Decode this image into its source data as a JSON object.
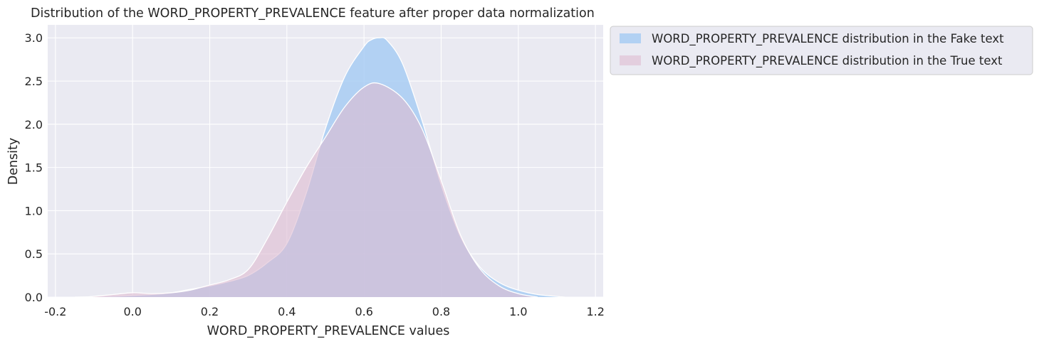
{
  "chart_data": {
    "type": "area",
    "title": "Distribution of the WORD_PROPERTY_PREVALENCE feature after proper data normalization",
    "xlabel": "WORD_PROPERTY_PREVALENCE values",
    "ylabel": "Density",
    "xlim": [
      -0.22,
      1.22
    ],
    "ylim": [
      0,
      3.15
    ],
    "xticks": [
      "-0.2",
      "0.0",
      "0.2",
      "0.4",
      "0.6",
      "0.8",
      "1.0",
      "1.2"
    ],
    "xtick_values": [
      -0.2,
      0.0,
      0.2,
      0.4,
      0.6,
      0.8,
      1.0,
      1.2
    ],
    "yticks": [
      "0.0",
      "0.5",
      "1.0",
      "1.5",
      "2.0",
      "2.5",
      "3.0"
    ],
    "ytick_values": [
      0.0,
      0.5,
      1.0,
      1.5,
      2.0,
      2.5,
      3.0
    ],
    "grid": true,
    "legend_position": "outside-top-right",
    "series": [
      {
        "name": "WORD_PROPERTY_PREVALENCE distribution in the Fake text",
        "color": "#a1c9f4",
        "x": [
          -0.15,
          -0.05,
          0.0,
          0.05,
          0.1,
          0.15,
          0.2,
          0.25,
          0.3,
          0.35,
          0.4,
          0.45,
          0.5,
          0.55,
          0.6,
          0.62,
          0.64,
          0.66,
          0.7,
          0.75,
          0.8,
          0.85,
          0.9,
          0.95,
          1.0,
          1.05,
          1.12
        ],
        "values": [
          0.0,
          0.01,
          0.02,
          0.03,
          0.05,
          0.09,
          0.13,
          0.18,
          0.25,
          0.4,
          0.62,
          1.2,
          1.95,
          2.55,
          2.9,
          2.98,
          3.0,
          2.97,
          2.7,
          2.05,
          1.3,
          0.7,
          0.35,
          0.17,
          0.08,
          0.03,
          0.0
        ]
      },
      {
        "name": "WORD_PROPERTY_PREVALENCE distribution in the True text",
        "color": "#debad0",
        "x": [
          -0.12,
          -0.05,
          0.0,
          0.05,
          0.1,
          0.15,
          0.2,
          0.25,
          0.3,
          0.35,
          0.4,
          0.45,
          0.5,
          0.55,
          0.6,
          0.64,
          0.7,
          0.75,
          0.8,
          0.85,
          0.9,
          0.95,
          1.0,
          1.05
        ],
        "values": [
          0.0,
          0.03,
          0.05,
          0.04,
          0.05,
          0.08,
          0.14,
          0.2,
          0.32,
          0.68,
          1.1,
          1.5,
          1.85,
          2.2,
          2.43,
          2.47,
          2.3,
          1.95,
          1.35,
          0.72,
          0.33,
          0.13,
          0.04,
          0.0
        ]
      }
    ]
  }
}
